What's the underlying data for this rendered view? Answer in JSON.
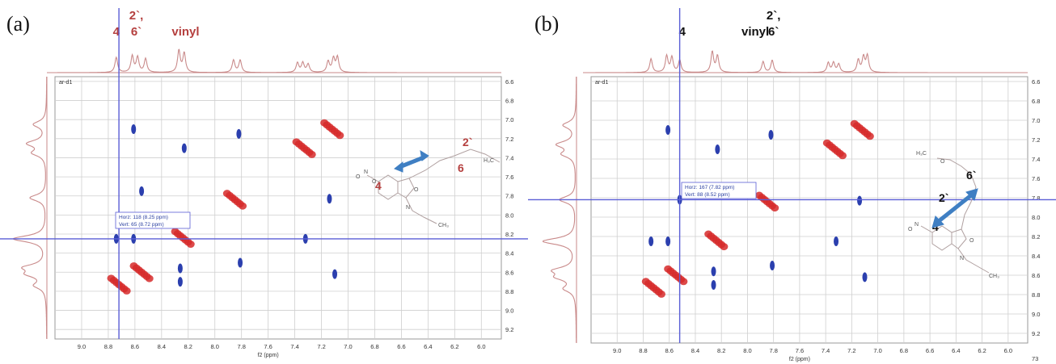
{
  "colors": {
    "spectrum": "#c98a8a",
    "crosshair": "#5a5ed6",
    "positive": "#d62a2a",
    "negative": "#2b3fae",
    "grid": "#cfcfcf",
    "arrow": "#3f7fc3",
    "label_a": "#b5403f",
    "label_b": "#111111"
  },
  "chart_data": [
    {
      "type": "scatter",
      "panel_label": "(a)",
      "plot_tag": "ar-d1",
      "xlabel": "f2 (ppm)",
      "xlim": [
        9.2,
        5.85
      ],
      "ylim": [
        6.55,
        9.3
      ],
      "x_ticks": [
        "9.0",
        "8.8",
        "8.6",
        "8.4",
        "8.2",
        "8.0",
        "7.8",
        "7.6",
        "7.4",
        "7.2",
        "7.0",
        "6.8",
        "6.6",
        "6.4",
        "6.2",
        "6.0"
      ],
      "y_ticks": [
        "6.6",
        "6.8",
        "7.0",
        "7.2",
        "7.4",
        "7.6",
        "7.8",
        "8.0",
        "8.2",
        "8.4",
        "8.6",
        "8.8",
        "9.0",
        "9.2"
      ],
      "peak_labels": [
        {
          "text": "4",
          "x": 8.74,
          "row": 1
        },
        {
          "text": "2`,",
          "x": 8.59,
          "row": 0
        },
        {
          "text": "6`",
          "x": 8.59,
          "row": 1
        },
        {
          "text": "vinyl",
          "x": 8.22,
          "row": 1
        }
      ],
      "crosshair": {
        "x": 8.72,
        "y": 8.25
      },
      "cursor_info": [
        "Horz: 118 (8.25 ppm)",
        "Vert: 65 (8.72 ppm)"
      ],
      "top_peaks": [
        {
          "x": 8.74,
          "h": 0.55
        },
        {
          "x": 8.62,
          "h": 0.6
        },
        {
          "x": 8.58,
          "h": 0.55
        },
        {
          "x": 8.52,
          "h": 0.5
        },
        {
          "x": 8.27,
          "h": 0.8
        },
        {
          "x": 8.23,
          "h": 0.7
        },
        {
          "x": 7.86,
          "h": 0.45
        },
        {
          "x": 7.81,
          "h": 0.45
        },
        {
          "x": 7.38,
          "h": 0.35
        },
        {
          "x": 7.34,
          "h": 0.35
        },
        {
          "x": 7.3,
          "h": 0.3
        },
        {
          "x": 7.15,
          "h": 0.4
        },
        {
          "x": 7.11,
          "h": 0.5
        },
        {
          "x": 7.08,
          "h": 0.55
        }
      ],
      "left_peaks": [
        {
          "y": 7.05,
          "h": 0.35
        },
        {
          "y": 7.25,
          "h": 0.5
        },
        {
          "y": 7.35,
          "h": 0.35
        },
        {
          "y": 7.82,
          "h": 0.45
        },
        {
          "y": 8.25,
          "h": 0.9
        },
        {
          "y": 8.55,
          "h": 0.55
        },
        {
          "y": 8.62,
          "h": 0.45
        },
        {
          "y": 8.74,
          "h": 0.3
        }
      ],
      "positive_peaks": [
        {
          "x": 8.72,
          "y": 8.73,
          "r": 2.4
        },
        {
          "x": 8.55,
          "y": 8.6,
          "r": 2.6
        },
        {
          "x": 8.24,
          "y": 8.24,
          "r": 2.4
        },
        {
          "x": 7.85,
          "y": 7.84,
          "r": 2.2
        },
        {
          "x": 7.33,
          "y": 7.3,
          "r": 2.6
        },
        {
          "x": 7.12,
          "y": 7.1,
          "r": 2.6
        }
      ],
      "negative_peaks": [
        {
          "x": 8.61,
          "y": 7.1
        },
        {
          "x": 8.23,
          "y": 7.3
        },
        {
          "x": 7.82,
          "y": 7.15
        },
        {
          "x": 8.55,
          "y": 7.75
        },
        {
          "x": 7.14,
          "y": 7.83
        },
        {
          "x": 8.74,
          "y": 8.25
        },
        {
          "x": 8.61,
          "y": 8.25
        },
        {
          "x": 8.26,
          "y": 8.56
        },
        {
          "x": 8.26,
          "y": 8.7
        },
        {
          "x": 7.32,
          "y": 8.25
        },
        {
          "x": 7.81,
          "y": 8.5
        },
        {
          "x": 7.1,
          "y": 8.62
        }
      ],
      "structure": {
        "labels": [
          "4",
          "2`",
          "6"
        ],
        "atoms": [
          "O",
          "N",
          "O",
          "N",
          "O",
          "H₃C",
          "CH₃"
        ]
      }
    },
    {
      "type": "scatter",
      "panel_label": "(b)",
      "plot_tag": "ar-d1",
      "xlabel": "f2 (ppm)",
      "xlim": [
        9.2,
        5.85
      ],
      "ylim": [
        6.55,
        9.3
      ],
      "x_ticks": [
        "9.0",
        "8.8",
        "8.6",
        "8.4",
        "8.2",
        "8.0",
        "7.8",
        "7.6",
        "7.4",
        "7.2",
        "7.0",
        "6.8",
        "6.6",
        "6.4",
        "6.2",
        "6.0"
      ],
      "y_ticks": [
        "6.6",
        "6.8",
        "7.0",
        "7.2",
        "7.4",
        "7.6",
        "7.8",
        "8.0",
        "8.2",
        "8.4",
        "8.6",
        "8.8",
        "9.0",
        "9.2"
      ],
      "extra_tick": "73",
      "peak_labels": [
        {
          "text": "4",
          "x": 8.5,
          "row": 1
        },
        {
          "text": "vinyl",
          "x": 7.94,
          "row": 1
        },
        {
          "text": "2`,",
          "x": 7.8,
          "row": 0
        },
        {
          "text": "6`",
          "x": 7.8,
          "row": 1
        }
      ],
      "crosshair": {
        "x": 8.52,
        "y": 7.82
      },
      "cursor_info": [
        "Horz: 167 (7.82 ppm)",
        "Vert: 88 (8.52 ppm)"
      ],
      "top_peaks": [
        {
          "x": 8.74,
          "h": 0.5
        },
        {
          "x": 8.62,
          "h": 0.6
        },
        {
          "x": 8.58,
          "h": 0.55
        },
        {
          "x": 8.52,
          "h": 0.45
        },
        {
          "x": 8.27,
          "h": 0.75
        },
        {
          "x": 8.23,
          "h": 0.6
        },
        {
          "x": 7.88,
          "h": 0.4
        },
        {
          "x": 7.81,
          "h": 0.45
        },
        {
          "x": 7.38,
          "h": 0.35
        },
        {
          "x": 7.34,
          "h": 0.35
        },
        {
          "x": 7.3,
          "h": 0.3
        },
        {
          "x": 7.15,
          "h": 0.45
        },
        {
          "x": 7.11,
          "h": 0.55
        },
        {
          "x": 7.08,
          "h": 0.6
        }
      ],
      "left_peaks": [
        {
          "y": 7.05,
          "h": 0.35
        },
        {
          "y": 7.25,
          "h": 0.5
        },
        {
          "y": 7.35,
          "h": 0.35
        },
        {
          "y": 7.82,
          "h": 0.45
        },
        {
          "y": 8.25,
          "h": 0.9
        },
        {
          "y": 8.55,
          "h": 0.55
        },
        {
          "y": 8.62,
          "h": 0.45
        },
        {
          "y": 8.74,
          "h": 0.3
        }
      ],
      "positive_peaks": [
        {
          "x": 8.72,
          "y": 8.73,
          "r": 2.4
        },
        {
          "x": 8.55,
          "y": 8.6,
          "r": 2.6
        },
        {
          "x": 8.24,
          "y": 8.24,
          "r": 2.4
        },
        {
          "x": 7.85,
          "y": 7.84,
          "r": 2.2
        },
        {
          "x": 7.33,
          "y": 7.3,
          "r": 2.6
        },
        {
          "x": 7.12,
          "y": 7.1,
          "r": 2.6
        }
      ],
      "negative_peaks": [
        {
          "x": 8.61,
          "y": 7.1
        },
        {
          "x": 8.23,
          "y": 7.3
        },
        {
          "x": 7.82,
          "y": 7.15
        },
        {
          "x": 8.52,
          "y": 7.82
        },
        {
          "x": 7.14,
          "y": 7.83
        },
        {
          "x": 8.74,
          "y": 8.25
        },
        {
          "x": 8.61,
          "y": 8.25
        },
        {
          "x": 8.26,
          "y": 8.56
        },
        {
          "x": 8.26,
          "y": 8.7
        },
        {
          "x": 7.32,
          "y": 8.25
        },
        {
          "x": 7.81,
          "y": 8.5
        },
        {
          "x": 7.1,
          "y": 8.62
        }
      ],
      "structure": {
        "labels": [
          "2`",
          "6`",
          "4"
        ],
        "atoms": [
          "H₃C",
          "O",
          "N",
          "O",
          "N",
          "O",
          "CH₃"
        ]
      }
    }
  ]
}
